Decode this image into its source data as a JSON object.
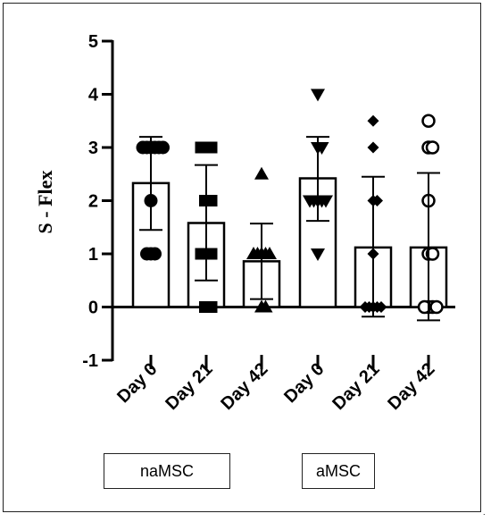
{
  "chart_data": {
    "type": "bar",
    "ylabel": "S - Flex",
    "ylim": [
      -1,
      5
    ],
    "yticks": [
      "-1",
      "0",
      "1",
      "2",
      "3",
      "4",
      "5"
    ],
    "categories": [
      "Day 0",
      "Day 21",
      "Day 42",
      "Day 0",
      "Day 21",
      "Day 42"
    ],
    "groups": [
      "naMSC",
      "aMSC"
    ],
    "series": [
      {
        "values": [
          2.33,
          1.58,
          0.86,
          2.42,
          1.12,
          1.12
        ],
        "error_lower": [
          1.45,
          0.5,
          0.15,
          1.62,
          -0.18,
          -0.25
        ],
        "error_upper": [
          3.2,
          2.67,
          1.57,
          3.2,
          2.45,
          2.52
        ],
        "markers": [
          "circle",
          "square",
          "triangle-up",
          "triangle-down",
          "diamond",
          "circle-open"
        ],
        "points": [
          [
            3,
            3,
            3,
            3,
            3,
            3,
            2,
            1,
            1,
            1
          ],
          [
            3,
            3,
            3,
            2,
            2,
            1,
            1,
            1,
            0,
            0
          ],
          [
            2.5,
            1,
            1,
            1,
            1,
            1,
            0,
            0
          ],
          [
            4,
            3,
            3,
            2,
            2,
            2,
            2,
            2,
            1
          ],
          [
            3.5,
            3,
            2,
            2,
            1,
            0,
            0,
            0,
            0,
            0
          ],
          [
            3.5,
            3,
            3,
            2,
            1,
            1,
            0,
            0,
            0,
            0
          ]
        ]
      }
    ]
  }
}
